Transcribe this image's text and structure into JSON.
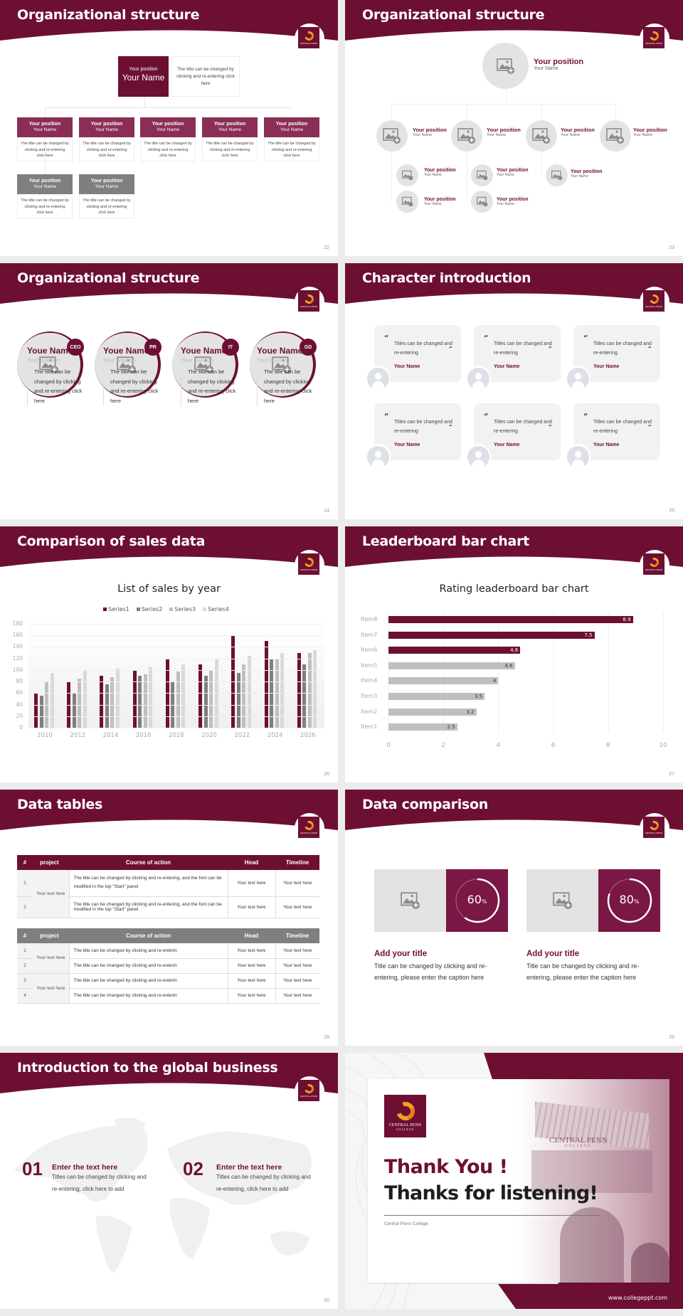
{
  "colors": {
    "brand": "#6d0f33",
    "brand_light": "#8b2e56",
    "gray_dark": "#7f7f7f",
    "gray_mid": "#a6a6a6",
    "gray_light": "#d0d0d0",
    "gray_bar": "#bfbfbf",
    "circle_bg": "#e3e3e3"
  },
  "logo": {
    "name": "CENTRAL PENN",
    "sub": "COLLEGE"
  },
  "slides": {
    "s22": {
      "title": "Organizational structure",
      "page": "22",
      "top": {
        "position": "Your position",
        "name": "Your Name",
        "desc": "The title can be changed by clicking and re-entering click here"
      },
      "cards": [
        {
          "position": "Your position",
          "name": "Your Name",
          "desc": "The title can be changed by clicking and re-entering click here"
        },
        {
          "position": "Your position",
          "name": "Your Name",
          "desc": "The title can be changed by clicking and re-entering click here"
        },
        {
          "position": "Your position",
          "name": "Your Name",
          "desc": "The title can be changed by clicking and re-entering click here"
        },
        {
          "position": "Your position",
          "name": "Your Name",
          "desc": "The title can be changed by clicking and re-entering click here"
        },
        {
          "position": "Your position",
          "name": "Your Name",
          "desc": "The title can be changed by clicking and re-entering click here"
        },
        {
          "position": "Your position",
          "name": "Your Name",
          "desc": "The title can be changed by clicking and re-entering click here"
        },
        {
          "position": "Your position",
          "name": "Your Name",
          "desc": "The title can be changed by clicking and re-entering click here"
        }
      ]
    },
    "s23": {
      "title": "Organizational structure",
      "page": "23",
      "top": {
        "position": "Your position",
        "name": "Your Name"
      },
      "level1": [
        {
          "position": "Your position",
          "name": "Your Name"
        },
        {
          "position": "Your position",
          "name": "Your Name"
        },
        {
          "position": "Your position",
          "name": "Your Name"
        },
        {
          "position": "Your position",
          "name": "Your Name"
        }
      ],
      "level2": [
        {
          "position": "Your position",
          "name": "Your Name"
        },
        {
          "position": "Your position",
          "name": "Your Name"
        },
        {
          "position": "Your position",
          "name": "Your Name"
        },
        {
          "position": "Your position",
          "name": "Your Name"
        },
        {
          "position": "Your position",
          "name": "Your Name"
        }
      ]
    },
    "s24": {
      "title": "Organizational structure",
      "page": "24",
      "people": [
        {
          "badge": "CEO",
          "name": "Youe Name",
          "position": "Your position",
          "desc": "The title can be changed by clicking and re-entering click here"
        },
        {
          "badge": "PR",
          "name": "Youe Name",
          "position": "Your position",
          "desc": "The title can be changed by clicking and re-entering click here"
        },
        {
          "badge": "IT",
          "name": "Youe Name",
          "position": "Your position",
          "desc": "The title can be changed by clicking and re-entering click here"
        },
        {
          "badge": "GD",
          "name": "Youe Name",
          "position": "Your position",
          "desc": "The title can be changed by clicking and re-entering click here"
        }
      ]
    },
    "s25": {
      "title": "Character introduction",
      "page": "25",
      "quote_open": "“",
      "quote_close": "”",
      "cards": [
        {
          "text": "Titles can be changed and re-entering",
          "name": "Your Name"
        },
        {
          "text": "Titles can be changed and re-entering",
          "name": "Your Name"
        },
        {
          "text": "Titles can be changed and re-entering",
          "name": "Your Name"
        },
        {
          "text": "Titles can be changed and re-entering",
          "name": "Your Name"
        },
        {
          "text": "Titles can be changed and re-entering",
          "name": "Your Name"
        },
        {
          "text": "Titles can be changed and re-entering",
          "name": "Your Name"
        }
      ]
    },
    "s26": {
      "title": "Comparison of sales data",
      "page": "26"
    },
    "s27": {
      "title": "Leaderboard bar chart",
      "page": "27"
    },
    "s28": {
      "title": "Data tables",
      "page": "28",
      "headers": [
        "#",
        "project",
        "Course of action",
        "Head",
        "Timeline"
      ],
      "table1": {
        "project": "Your text here",
        "rows": [
          {
            "num": "1",
            "action": "The title can be changed by clicking and re-entering, and the font can be modified in the top \"Start\" panel",
            "head": "Your text here",
            "timeline": "Your text here"
          },
          {
            "num": "2",
            "action": "The title can be changed by clicking and re-entering, and the font can be modified in the top \"Start\" panel",
            "head": "Your text here",
            "timeline": "Your text here"
          }
        ]
      },
      "table2": {
        "groups": [
          "Your text here",
          "Your text here"
        ],
        "rows": [
          {
            "num": "1",
            "action": "The title can be changed by clicking and re-enterin",
            "head": "Your text here",
            "timeline": "Your text here"
          },
          {
            "num": "2",
            "action": "The title can be changed by clicking and re-enterin",
            "head": "Your text here",
            "timeline": "Your text here"
          },
          {
            "num": "3",
            "action": "The title can be changed by clicking and re-enterin",
            "head": "Your text here",
            "timeline": "Your text here"
          },
          {
            "num": "4",
            "action": "The title can be changed by clicking and re-enterin",
            "head": "Your text here",
            "timeline": "Your text here"
          }
        ]
      }
    },
    "s29": {
      "title": "Data comparison",
      "page": "29",
      "items": [
        {
          "percent": "60",
          "unit": "%",
          "value": 60,
          "title": "Add your title",
          "desc": "Title can be changed by clicking and re-entering, please enter the caption here"
        },
        {
          "percent": "80",
          "unit": "%",
          "value": 80,
          "title": "Add your title",
          "desc": "Title can be changed by clicking and re-entering, please enter the caption here"
        }
      ]
    },
    "s30": {
      "title": "Introduction to the global business",
      "page": "30",
      "items": [
        {
          "num": "01",
          "title": "Enter the text here",
          "desc": "Titles can be changed by clicking and re-entering, click here to add"
        },
        {
          "num": "02",
          "title": "Enter the text here",
          "desc": "Titles can be changed by clicking and re-entering, click here to add"
        }
      ]
    },
    "s31": {
      "line1": "Thank You !",
      "line2": "Thanks for listening!",
      "org": "Central Penn College",
      "url": "www.collegeppt.com",
      "building_sign": "CENTRAL PENN",
      "building_sub": "COLLEGE"
    }
  },
  "chart_data": [
    {
      "type": "bar",
      "title": "List of sales by year",
      "categories": [
        "2010",
        "2012",
        "2014",
        "2016",
        "2018",
        "2020",
        "2022",
        "2024",
        "2026"
      ],
      "series": [
        {
          "name": "Series1",
          "color": "#6d0f33",
          "values": [
            60,
            80,
            90,
            100,
            120,
            110,
            160,
            150,
            130
          ]
        },
        {
          "name": "Series2",
          "color": "#7f7f7f",
          "values": [
            55,
            60,
            75,
            90,
            80,
            90,
            95,
            120,
            110
          ]
        },
        {
          "name": "Series3",
          "color": "#bfbfbf",
          "values": [
            80,
            85,
            88,
            92,
            98,
            100,
            110,
            120,
            130
          ]
        },
        {
          "name": "Series4",
          "color": "#d9d9d9",
          "values": [
            95,
            100,
            102,
            105,
            110,
            120,
            125,
            130,
            135
          ]
        }
      ],
      "yticks": [
        "0",
        "20",
        "40",
        "60",
        "80",
        "100",
        "120",
        "140",
        "160",
        "180"
      ],
      "xlabel": "",
      "ylabel": "",
      "ylim": [
        0,
        180
      ],
      "legend_position": "top",
      "grid": true
    },
    {
      "type": "bar",
      "orientation": "horizontal",
      "title": "Rating leaderboard bar chart",
      "categories": [
        "Item8",
        "Item7",
        "Item6",
        "Item5",
        "Item4",
        "Item3",
        "Item2",
        "Item1"
      ],
      "values": [
        8.9,
        7.5,
        4.8,
        4.6,
        4,
        3.5,
        3.2,
        2.5
      ],
      "labels": [
        "8.9",
        "7.5",
        "4.8",
        "4.6",
        "4",
        "3.5",
        "3.2",
        "2.5"
      ],
      "highlight_top": 3,
      "xticks": [
        "0",
        "2",
        "4",
        "6",
        "8",
        "10"
      ],
      "xlim": [
        0,
        10
      ],
      "xlabel": "",
      "ylabel": "",
      "grid": true
    }
  ]
}
